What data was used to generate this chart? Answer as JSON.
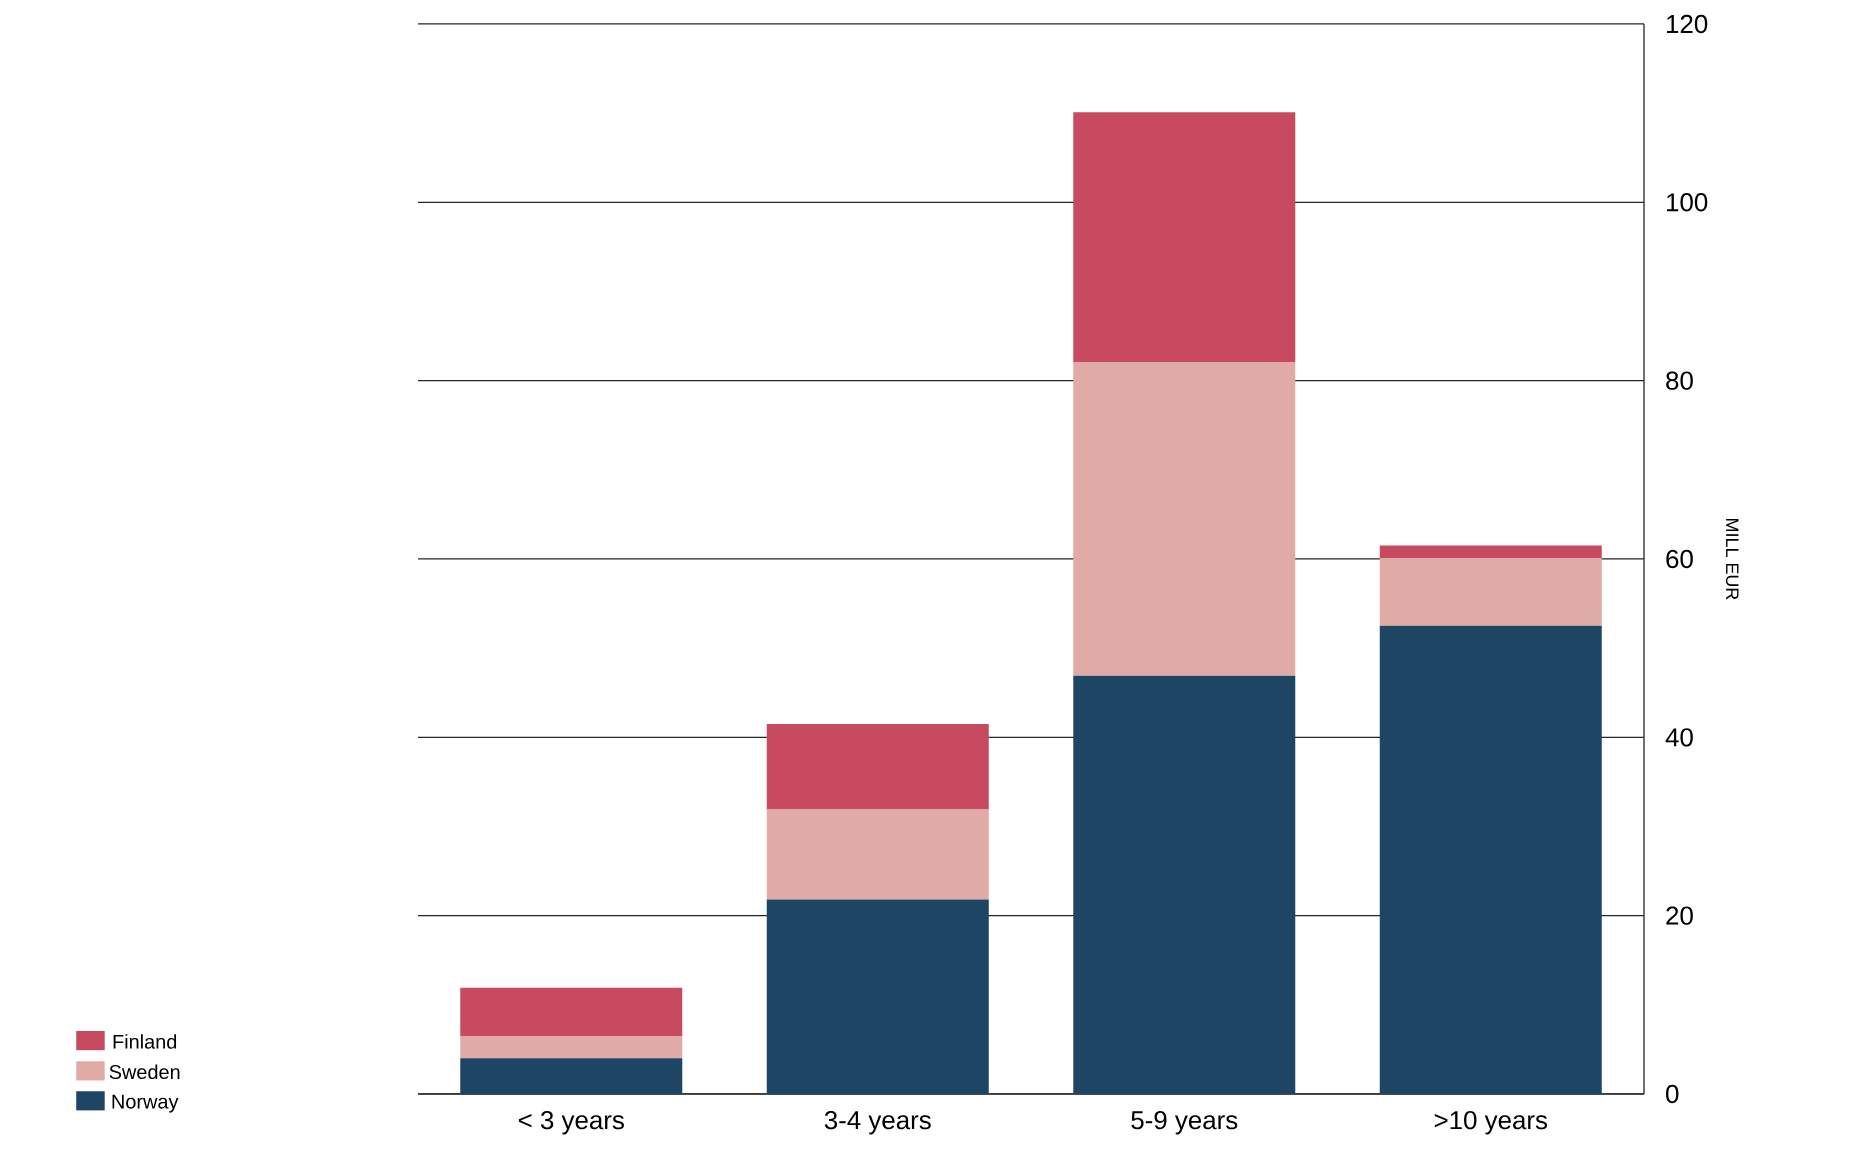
{
  "chart_data": {
    "type": "bar",
    "stacked": true,
    "ylabel": "MILL EUR",
    "categories": [
      "< 3 years",
      "3-4 years",
      "5-9 years",
      ">10 years"
    ],
    "series": [
      {
        "name": "Norway",
        "color": "#1f4565",
        "values": [
          4.0,
          21.8,
          46.9,
          52.5
        ]
      },
      {
        "name": "Sweden",
        "color": "#e0aba6",
        "values": [
          2.5,
          10.1,
          35.2,
          7.6
        ]
      },
      {
        "name": "Finland",
        "color": "#c84a60",
        "values": [
          5.4,
          9.6,
          28.0,
          1.4
        ]
      }
    ],
    "ylim": [
      0,
      120
    ],
    "yticks": [
      0,
      20,
      40,
      60,
      80,
      100,
      120
    ],
    "grid": "y",
    "legend": "bottom left"
  }
}
